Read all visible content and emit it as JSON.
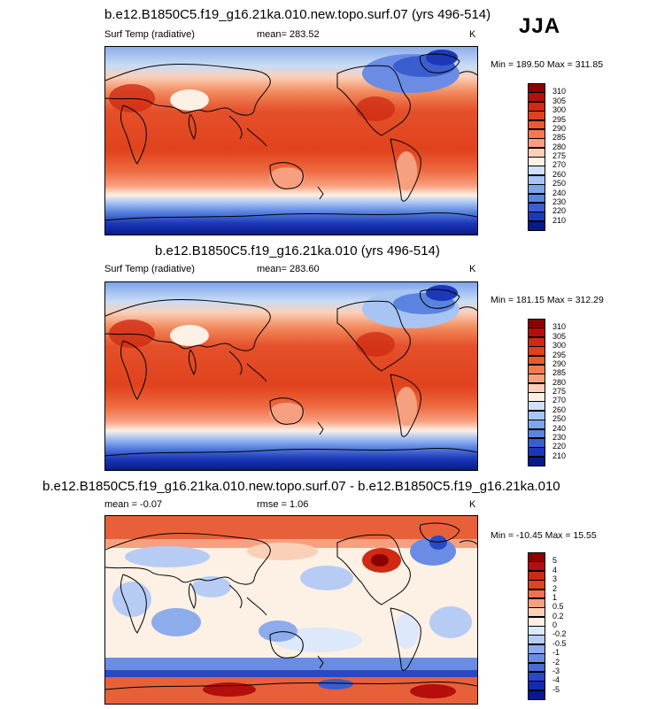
{
  "season_label": "JJA",
  "panels": [
    {
      "title": "b.e12.B1850C5.f19_g16.21ka.010.new.topo.surf.07 (yrs 496-514)",
      "variable": "Surf Temp (radiative)",
      "stat": "mean= 283.52",
      "stat2": "",
      "units": "K",
      "minmax": "Min = 189.50 Max = 311.85"
    },
    {
      "title": "b.e12.B1850C5.f19_g16.21ka.010 (yrs 496-514)",
      "variable": "Surf Temp (radiative)",
      "stat": "mean= 283.60",
      "stat2": "",
      "units": "K",
      "minmax": "Min = 181.15 Max = 312.29"
    },
    {
      "title": "b.e12.B1850C5.f19_g16.21ka.010.new.topo.surf.07 - b.e12.B1850C5.f19_g16.21ka.010",
      "variable": "",
      "stat": "mean =  -0.07",
      "stat2": "rmse =   1.06",
      "units": "K",
      "minmax": "Min = -10.45 Max =  15.55"
    }
  ],
  "colorbar_abs": {
    "labels": [
      "310",
      "305",
      "300",
      "295",
      "290",
      "285",
      "280",
      "275",
      "270",
      "260",
      "250",
      "240",
      "230",
      "220",
      "210"
    ],
    "colors": [
      "#8b0000",
      "#b40f0c",
      "#cf2a12",
      "#e0421c",
      "#ea5a30",
      "#f27a50",
      "#f7a080",
      "#fbd0b8",
      "#fdf0e4",
      "#d0e0f8",
      "#a8c4f2",
      "#7ea4ea",
      "#5a84e0",
      "#3a5ed0",
      "#1c38b8",
      "#071a8c"
    ]
  },
  "colorbar_diff": {
    "labels": [
      "5",
      "4",
      "3",
      "2",
      "1",
      "0.5",
      "0.2",
      "0",
      "-0.2",
      "-0.5",
      "-1",
      "-2",
      "-3",
      "-4",
      "-5"
    ],
    "colors": [
      "#8b0000",
      "#b40f0c",
      "#cf2a12",
      "#e0421c",
      "#f07050",
      "#f7a080",
      "#fbd0b8",
      "#fdf0e4",
      "#dde8fa",
      "#b6ccf4",
      "#8cacec",
      "#6a8ce4",
      "#4a6ad8",
      "#2a48c4",
      "#132ca8",
      "#071a8c"
    ]
  }
}
